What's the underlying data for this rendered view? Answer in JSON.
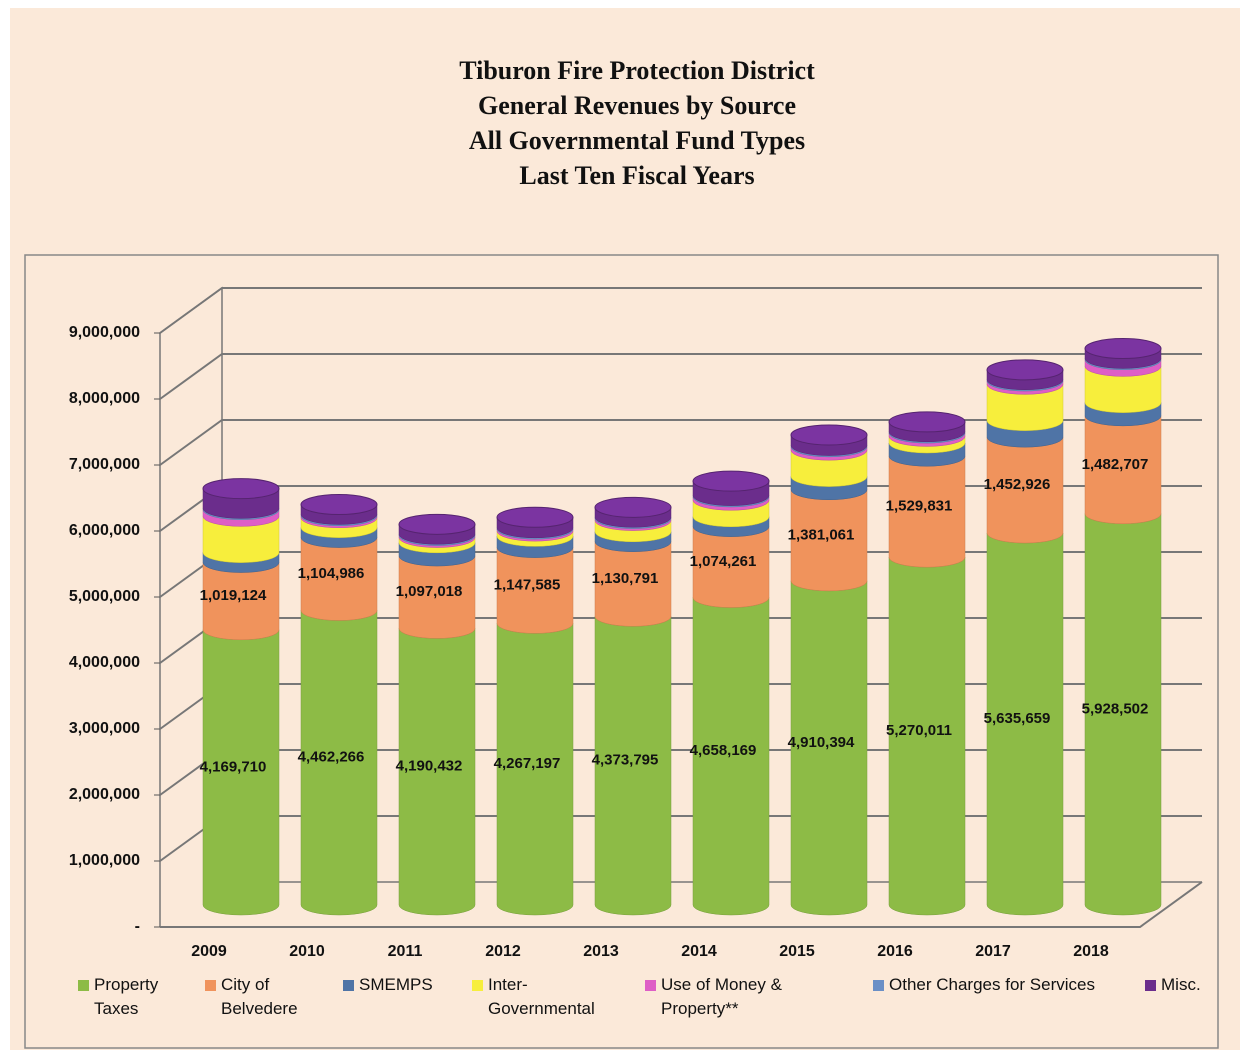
{
  "chart_data": {
    "type": "stacked-cylinder",
    "title": [
      "Tiburon Fire Protection District",
      "General Revenues by Source",
      "All Governmental Fund Types",
      "Last Ten Fiscal Years"
    ],
    "categories": [
      "2009",
      "2010",
      "2011",
      "2012",
      "2013",
      "2014",
      "2015",
      "2016",
      "2017",
      "2018"
    ],
    "series": [
      {
        "name": "Property Taxes",
        "color": "#8dbb46",
        "values": [
          4169710,
          4462266,
          4190432,
          4267197,
          4373795,
          4658169,
          4910394,
          5270011,
          5635659,
          5928502
        ],
        "value_labels": [
          "4,169,710",
          "4,462,266",
          "4,190,432",
          "4,267,197",
          "4,373,795",
          "4,658,169",
          "4,910,394",
          "5,270,011",
          "5,635,659",
          "5,928,502"
        ]
      },
      {
        "name": "City of Belvedere",
        "color": "#f0935c",
        "values": [
          1019124,
          1104986,
          1097018,
          1147585,
          1130791,
          1074261,
          1381061,
          1529831,
          1452926,
          1482707
        ],
        "value_labels": [
          "1,019,124",
          "1,104,986",
          "1,097,018",
          "1,147,585",
          "1,130,791",
          "1,074,261",
          "1,381,061",
          "1,529,831",
          "1,452,926",
          "1,482,707"
        ]
      },
      {
        "name": "SMEMPS",
        "color": "#4f74a6",
        "values": [
          150000,
          150000,
          200000,
          170000,
          150000,
          150000,
          200000,
          200000,
          250000,
          200000
        ]
      },
      {
        "name": "Inter-Governmental",
        "color": "#f7ee3c",
        "values": [
          550000,
          150000,
          80000,
          80000,
          170000,
          250000,
          400000,
          100000,
          550000,
          550000
        ]
      },
      {
        "name": "Use of Money & Property**",
        "color": "#de5ec6",
        "values": [
          100000,
          30000,
          30000,
          30000,
          30000,
          50000,
          50000,
          50000,
          50000,
          100000
        ]
      },
      {
        "name": "Other Charges for Services",
        "color": "#6a8fc6",
        "values": [
          20000,
          20000,
          20000,
          20000,
          20000,
          20000,
          20000,
          20000,
          20000,
          20000
        ]
      },
      {
        "name": "Misc.",
        "color": "#6b2d8c",
        "values": [
          300000,
          150000,
          150000,
          160000,
          150000,
          220000,
          160000,
          150000,
          150000,
          150000
        ]
      }
    ],
    "ylim": [
      0,
      9000000
    ],
    "yticks": [
      {
        "value": 0,
        "label": "-"
      },
      {
        "value": 1000000,
        "label": "1,000,000"
      },
      {
        "value": 2000000,
        "label": "2,000,000"
      },
      {
        "value": 3000000,
        "label": "3,000,000"
      },
      {
        "value": 4000000,
        "label": "4,000,000"
      },
      {
        "value": 5000000,
        "label": "5,000,000"
      },
      {
        "value": 6000000,
        "label": "6,000,000"
      },
      {
        "value": 7000000,
        "label": "7,000,000"
      },
      {
        "value": 8000000,
        "label": "8,000,000"
      },
      {
        "value": 9000000,
        "label": "9,000,000"
      }
    ],
    "grid": true,
    "legend": "bottom"
  }
}
